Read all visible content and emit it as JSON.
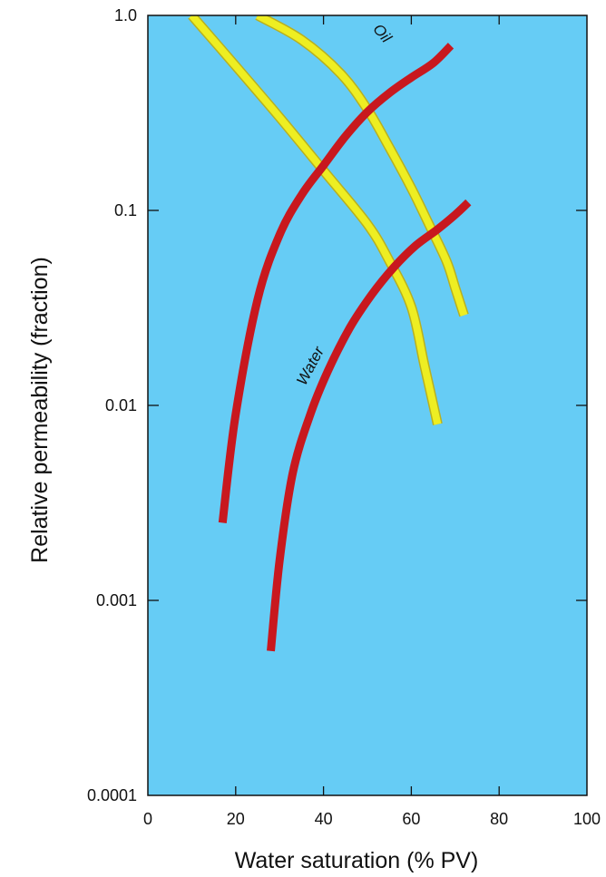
{
  "chart_data": {
    "type": "line",
    "title": "",
    "xlabel": "Water saturation (% PV)",
    "ylabel": "Relative permeability (fraction)",
    "xlim": [
      0,
      100
    ],
    "ylim": [
      0.0001,
      1.0
    ],
    "yscale": "log",
    "x_ticks": [
      "0",
      "20",
      "40",
      "60",
      "80",
      "100"
    ],
    "y_ticks": [
      "1.0",
      "0.1",
      "0.01",
      "0.001",
      "0.0001"
    ],
    "grid": false,
    "background_color": "#66ccf5",
    "series": [
      {
        "name": "Oil",
        "role": "oil",
        "color": "#c8181e",
        "x": [
          17,
          20,
          25,
          30,
          35,
          40,
          45,
          50,
          55,
          60,
          65,
          69
        ],
        "y": [
          0.0025,
          0.009,
          0.035,
          0.075,
          0.12,
          0.17,
          0.24,
          0.32,
          0.4,
          0.48,
          0.57,
          0.7
        ]
      },
      {
        "name": "Water",
        "role": "water",
        "color": "#c8181e",
        "x": [
          28,
          30,
          33,
          37,
          41,
          46,
          51,
          56,
          61,
          66,
          70,
          73
        ],
        "y": [
          0.00055,
          0.0016,
          0.0045,
          0.009,
          0.015,
          0.025,
          0.037,
          0.051,
          0.066,
          0.08,
          0.095,
          0.11
        ]
      },
      {
        "name": "",
        "role": "oil-yellow",
        "color": "#eeee22",
        "x": [
          25,
          35,
          44,
          50,
          55,
          60,
          64,
          68,
          70,
          72
        ],
        "y": [
          1.0,
          0.75,
          0.5,
          0.33,
          0.21,
          0.13,
          0.085,
          0.055,
          0.04,
          0.029
        ]
      },
      {
        "name": "",
        "role": "water-yellow",
        "color": "#eeee22",
        "x": [
          10,
          20,
          30,
          40,
          50,
          55,
          60,
          63,
          66
        ],
        "y": [
          1.0,
          0.55,
          0.3,
          0.16,
          0.085,
          0.055,
          0.032,
          0.016,
          0.008
        ]
      }
    ]
  }
}
